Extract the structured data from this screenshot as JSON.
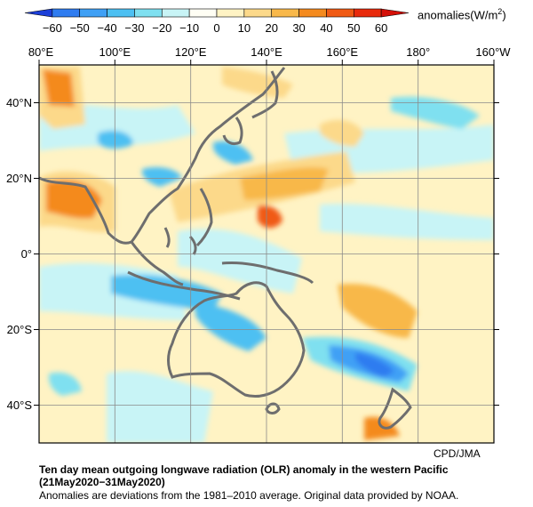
{
  "colorbar": {
    "tick_labels": [
      "−60",
      "−50",
      "−40",
      "−30",
      "−20",
      "−10",
      "0",
      "10",
      "20",
      "30",
      "40",
      "50",
      "60"
    ],
    "unit_prefix": "anomalies(W/m",
    "unit_sup": "2",
    "unit_suffix": ")",
    "colors": [
      "#1c3fd8",
      "#2f7cf0",
      "#3fa0f5",
      "#4dc0f2",
      "#7fe0f0",
      "#c8f4f6",
      "#fffef4",
      "#fff3c4",
      "#fcd98a",
      "#f8b84a",
      "#f48a1e",
      "#f05a14",
      "#e82a0c",
      "#d41008"
    ]
  },
  "map": {
    "lon_labels": [
      "80°E",
      "100°E",
      "120°E",
      "140°E",
      "160°E",
      "180°",
      "160°W"
    ],
    "lat_labels": [
      "40°N",
      "20°N",
      "0°",
      "20°S",
      "40°S"
    ]
  },
  "credit": "CPD/JMA",
  "caption": {
    "title": "Ten day mean outgoing longwave radiation (OLR) anomaly in the western Pacific",
    "date": "(21May2020−31May2020)",
    "note": "Anomalies are deviations from the 1981–2010 average. Original data provided by NOAA."
  }
}
